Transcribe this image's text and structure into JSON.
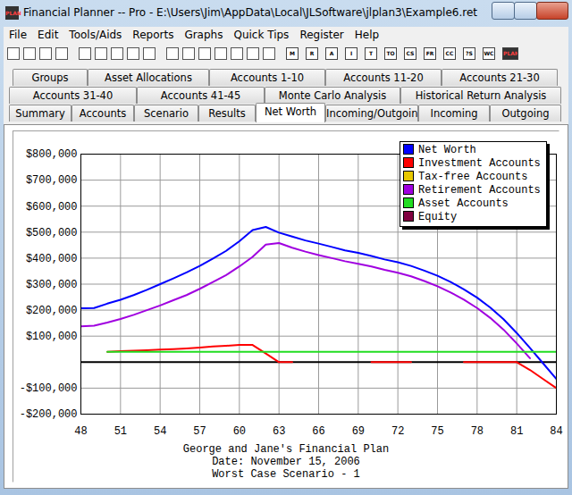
{
  "window": {
    "title": "Financial Planner -- Pro - E:\\Users\\Jim\\AppData\\Local\\JLSoftware\\jlplan3\\Example6.ret",
    "app_icon": "PLAN",
    "menu": [
      "File",
      "Edit",
      "Tools/Aids",
      "Reports",
      "Graphs",
      "Quick Tips",
      "Register",
      "Help"
    ],
    "toolbar": [
      "M",
      "R",
      "A",
      "I",
      "T",
      "TO",
      "CS",
      "FR",
      "CC",
      "?S",
      "WC",
      "PLAN"
    ]
  },
  "tabs": [
    [
      "Groups",
      "Asset Allocations",
      "Accounts 1-10",
      "Accounts 11-20",
      "Accounts 21-30"
    ],
    [
      "Accounts 31-40",
      "Accounts 41-45",
      "Monte Carlo Analysis",
      "Historical Return Analysis"
    ],
    [
      "Summary",
      "Accounts",
      "Scenario",
      "Results",
      "Net Worth",
      "Incoming/Outgoing",
      "Incoming",
      "Outgoing"
    ]
  ],
  "selected_tab": "Net Worth",
  "chart_data": {
    "type": "line",
    "title": "George and Jane's Financial Plan",
    "subtitle": "Date: November 15, 2006",
    "annotations": [
      "Worst Case Scenario - 1"
    ],
    "x": [
      48,
      49,
      50,
      51,
      52,
      53,
      54,
      55,
      56,
      57,
      58,
      59,
      60,
      61,
      62,
      63,
      64,
      65,
      66,
      67,
      68,
      69,
      70,
      71,
      72,
      73,
      74,
      75,
      76,
      77,
      78,
      79,
      80,
      81,
      82,
      83,
      84
    ],
    "xlim": [
      48,
      84
    ],
    "xticks": [
      48,
      51,
      54,
      57,
      60,
      63,
      66,
      69,
      72,
      75,
      78,
      81,
      84
    ],
    "ylim": [
      -200000,
      800000
    ],
    "yticks": [
      {
        "value": 800000,
        "label": "$800,000"
      },
      {
        "value": 700000,
        "label": "$700,000"
      },
      {
        "value": 600000,
        "label": "$600,000"
      },
      {
        "value": 500000,
        "label": "$500,000"
      },
      {
        "value": 400000,
        "label": "$400,000"
      },
      {
        "value": 300000,
        "label": "$300,000"
      },
      {
        "value": 200000,
        "label": "$200,000"
      },
      {
        "value": 100000,
        "label": "$100,000"
      },
      {
        "value": -100000,
        "label": "-$100,000"
      },
      {
        "value": -200000,
        "label": "-$200,000"
      }
    ],
    "grid": true,
    "legend": "top-right",
    "series": [
      {
        "name": "Net Worth",
        "color": "#0000ff",
        "values": [
          207000,
          208000,
          225000,
          240000,
          258000,
          278000,
          300000,
          322000,
          345000,
          370000,
          398000,
          428000,
          465000,
          508000,
          520000,
          498000,
          483000,
          468000,
          456000,
          443000,
          430000,
          420000,
          408000,
          395000,
          384000,
          370000,
          352000,
          332000,
          308000,
          280000,
          248000,
          210000,
          165000,
          112000,
          55000,
          -5000,
          -65000
        ]
      },
      {
        "name": "Investment Accounts",
        "color": "#ff0000",
        "values": [
          null,
          null,
          40000,
          42000,
          44000,
          46000,
          48000,
          50000,
          53000,
          56000,
          60000,
          63000,
          66000,
          66000,
          33000,
          0,
          0,
          null,
          null,
          null,
          null,
          null,
          0,
          0,
          0,
          0,
          null,
          null,
          null,
          0,
          0,
          0,
          0,
          0,
          -30000,
          -65000,
          -100000
        ]
      },
      {
        "name": "Tax-free Accounts",
        "color": "#e8c800",
        "values": [
          null,
          null,
          null,
          null,
          null,
          null,
          null,
          null,
          null,
          null,
          null,
          null,
          null,
          null,
          null,
          null,
          null,
          null,
          null,
          null,
          null,
          null,
          null,
          null,
          null,
          null,
          null,
          null,
          null,
          null,
          null,
          null,
          null,
          null,
          null,
          null,
          null
        ]
      },
      {
        "name": "Retirement Accounts",
        "color": "#a000e0",
        "values": [
          138000,
          140000,
          152000,
          166000,
          182000,
          200000,
          218000,
          238000,
          258000,
          282000,
          308000,
          335000,
          368000,
          405000,
          452000,
          458000,
          440000,
          425000,
          412000,
          400000,
          388000,
          378000,
          368000,
          355000,
          344000,
          330000,
          312000,
          292000,
          268000,
          240000,
          208000,
          170000,
          125000,
          72000,
          15000,
          null,
          null
        ]
      },
      {
        "name": "Asset Accounts",
        "color": "#22dd22",
        "values": [
          null,
          null,
          40000,
          40000,
          40000,
          40000,
          40000,
          40000,
          40000,
          40000,
          40000,
          40000,
          40000,
          40000,
          40000,
          40000,
          40000,
          40000,
          40000,
          40000,
          40000,
          40000,
          40000,
          40000,
          40000,
          40000,
          40000,
          40000,
          40000,
          40000,
          40000,
          40000,
          40000,
          40000,
          40000,
          40000,
          40000
        ]
      },
      {
        "name": "Equity",
        "color": "#800040",
        "values": [
          null,
          null,
          null,
          null,
          null,
          null,
          null,
          null,
          null,
          null,
          null,
          null,
          null,
          null,
          null,
          null,
          null,
          null,
          null,
          null,
          null,
          null,
          null,
          null,
          null,
          null,
          null,
          null,
          null,
          null,
          null,
          null,
          null,
          null,
          null,
          null,
          null
        ]
      }
    ]
  }
}
